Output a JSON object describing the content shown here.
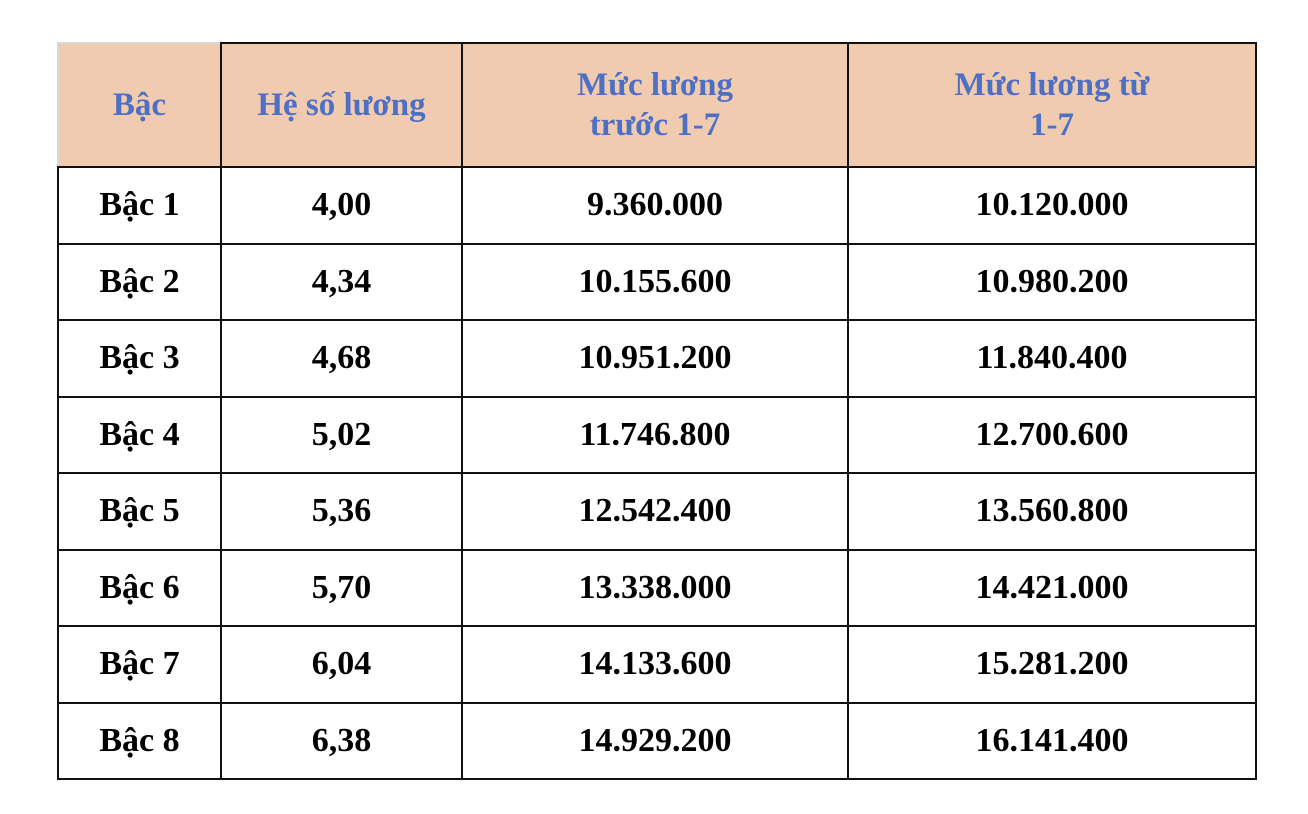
{
  "table": {
    "header": [
      "Bậc",
      "Hệ số lương",
      "Mức lương trước 1-7",
      "Mức lương từ 1-7"
    ],
    "rows": [
      [
        "Bậc 1",
        "4,00",
        "9.360.000",
        "10.120.000"
      ],
      [
        "Bậc 2",
        "4,34",
        "10.155.600",
        "10.980.200"
      ],
      [
        "Bậc 3",
        "4,68",
        "10.951.200",
        "11.840.400"
      ],
      [
        "Bậc 4",
        "5,02",
        "11.746.800",
        "12.700.600"
      ],
      [
        "Bậc 5",
        "5,36",
        "12.542.400",
        "13.560.800"
      ],
      [
        "Bậc 6",
        "5,70",
        "13.338.000",
        "14.421.000"
      ],
      [
        "Bậc 7",
        "6,04",
        "14.133.600",
        "15.281.200"
      ],
      [
        "Bậc 8",
        "6,38",
        "14.929.200",
        "16.141.400"
      ]
    ]
  }
}
